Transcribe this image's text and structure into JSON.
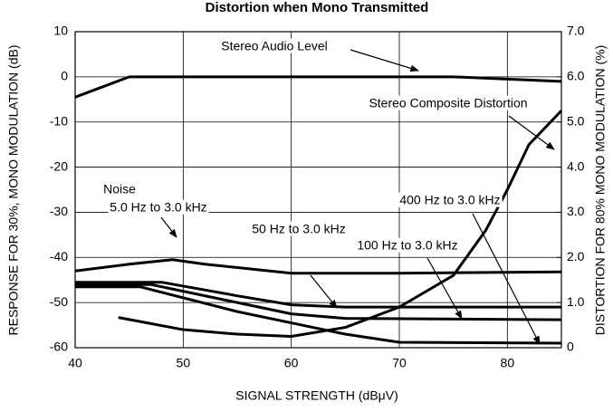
{
  "chart_data": {
    "type": "line",
    "title": "Distortion when Mono Transmitted",
    "xlabel": "SIGNAL STRENGTH (dBμV)",
    "ylabel": "RESPONSE FOR 30%, MONO MODULATION (dB)",
    "y2label": "DISTORTION FOR 80% MONO MODULATION (%)",
    "xlim": [
      40,
      85
    ],
    "xticks": [
      40,
      50,
      60,
      70,
      80
    ],
    "ylim": [
      -60,
      10
    ],
    "yticks": [
      10,
      0,
      -10,
      -20,
      -30,
      -40,
      -50,
      -60
    ],
    "y2lim": [
      0,
      7
    ],
    "y2ticks": [
      {
        "value": 7,
        "label": "7.0"
      },
      {
        "value": 6,
        "label": "6.0"
      },
      {
        "value": 5,
        "label": "5.0"
      },
      {
        "value": 4,
        "label": "4.0"
      },
      {
        "value": 3,
        "label": "3.0"
      },
      {
        "value": 2,
        "label": "2.0"
      },
      {
        "value": 1,
        "label": "1.0"
      },
      0
    ],
    "grid": true,
    "series": [
      {
        "color": "#000000",
        "x": [
          40,
          45,
          75,
          85
        ],
        "values": [
          -4.5,
          0,
          0,
          -1
        ]
      },
      {
        "color": "#000000",
        "axis": "y2",
        "x": [
          44,
          50,
          55,
          60,
          65,
          70,
          75,
          78,
          80,
          82,
          85
        ],
        "values": [
          0.67,
          0.4,
          0.3,
          0.25,
          0.45,
          0.9,
          1.6,
          2.6,
          3.5,
          4.5,
          5.25
        ]
      },
      {
        "color": "#000000",
        "x": [
          40,
          45,
          49,
          52,
          60,
          70,
          85
        ],
        "values": [
          -43,
          -41.5,
          -40.5,
          -41.5,
          -43.5,
          -43.5,
          -43.2
        ]
      },
      {
        "color": "#000000",
        "x": [
          40,
          48,
          55,
          60,
          65,
          85
        ],
        "values": [
          -45.5,
          -45.5,
          -48.5,
          -50.5,
          -51,
          -51
        ]
      },
      {
        "color": "#000000",
        "x": [
          40,
          47,
          55,
          60,
          65,
          85
        ],
        "values": [
          -46,
          -46,
          -50,
          -52.5,
          -53.5,
          -53.8
        ]
      },
      {
        "color": "#000000",
        "x": [
          40,
          46,
          55,
          60,
          65,
          70,
          85
        ],
        "values": [
          -46.5,
          -46.5,
          -52,
          -54.5,
          -57,
          -58.8,
          -59
        ]
      }
    ],
    "annotations": [
      "Stereo Audio Level",
      "Stereo Composite Distortion",
      "Noise",
      "5.0 Hz to 3.0 kHz",
      "50 Hz to 3.0 kHz",
      "100 Hz to 3.0 kHz",
      "400 Hz to 3.0 kHz"
    ]
  }
}
